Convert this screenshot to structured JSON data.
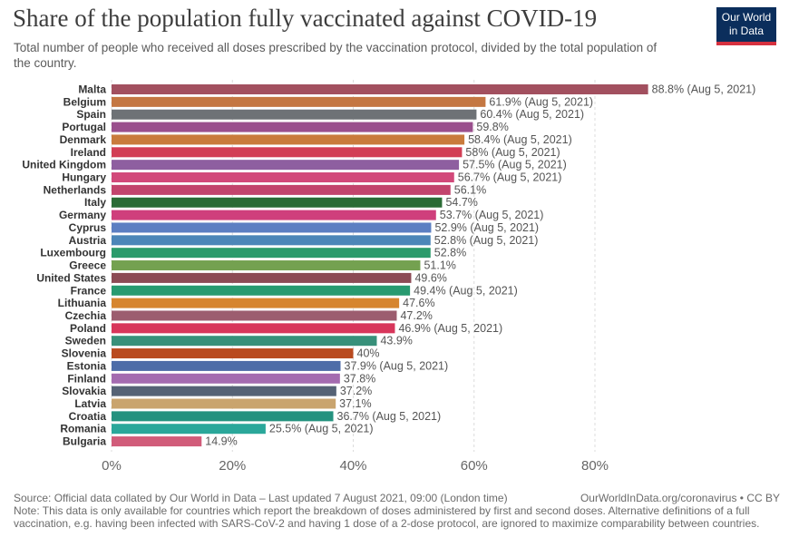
{
  "header": {
    "title": "Share of the population fully vaccinated against COVID-19",
    "subtitle": "Total number of people who received all doses prescribed by the vaccination protocol, divided by the total population of the country."
  },
  "logo": {
    "line1": "Our World",
    "line2": "in Data"
  },
  "footer": {
    "source": "Source: Official data collated by Our World in Data – Last updated 7 August 2021, 09:00 (London time)",
    "link": "OurWorldInData.org/coronavirus • CC BY",
    "note": "Note: This data is only available for countries which report the breakdown of doses administered by first and second doses. Alternative definitions of a full vaccination, e.g. having been infected with SARS-CoV-2 and having 1 dose of a 2-dose protocol, are ignored to maximize comparability between countries."
  },
  "chart_data": {
    "type": "bar",
    "orientation": "horizontal",
    "title": "Share of the population fully vaccinated against COVID-19",
    "xlim": [
      0,
      90
    ],
    "xticks": [
      0,
      20,
      40,
      60,
      80
    ],
    "xtick_labels": [
      "0%",
      "20%",
      "40%",
      "60%",
      "80%"
    ],
    "grid": true,
    "categories": [
      "Malta",
      "Belgium",
      "Spain",
      "Portugal",
      "Denmark",
      "Ireland",
      "United Kingdom",
      "Hungary",
      "Netherlands",
      "Italy",
      "Germany",
      "Cyprus",
      "Austria",
      "Luxembourg",
      "Greece",
      "United States",
      "France",
      "Lithuania",
      "Czechia",
      "Poland",
      "Sweden",
      "Slovenia",
      "Estonia",
      "Finland",
      "Slovakia",
      "Latvia",
      "Croatia",
      "Romania",
      "Bulgaria"
    ],
    "values": [
      88.8,
      61.9,
      60.4,
      59.8,
      58.4,
      58,
      57.5,
      56.7,
      56.1,
      54.7,
      53.7,
      52.9,
      52.8,
      52.8,
      51.1,
      49.6,
      49.4,
      47.6,
      47.2,
      46.9,
      43.9,
      40,
      37.9,
      37.8,
      37.2,
      37.1,
      36.7,
      25.5,
      14.9
    ],
    "labels": [
      "88.8% (Aug 5, 2021)",
      "61.9% (Aug 5, 2021)",
      "60.4% (Aug 5, 2021)",
      "59.8%",
      "58.4% (Aug 5, 2021)",
      "58% (Aug 5, 2021)",
      "57.5% (Aug 5, 2021)",
      "56.7% (Aug 5, 2021)",
      "56.1%",
      "54.7%",
      "53.7% (Aug 5, 2021)",
      "52.9% (Aug 5, 2021)",
      "52.8% (Aug 5, 2021)",
      "52.8%",
      "51.1%",
      "49.6%",
      "49.4% (Aug 5, 2021)",
      "47.6%",
      "47.2%",
      "46.9% (Aug 5, 2021)",
      "43.9%",
      "40%",
      "37.9% (Aug 5, 2021)",
      "37.8%",
      "37.2%",
      "37.1%",
      "36.7% (Aug 5, 2021)",
      "25.5% (Aug 5, 2021)",
      "14.9%"
    ],
    "colors": [
      "#a2505f",
      "#c47742",
      "#6e7276",
      "#9a4f8d",
      "#c97b3c",
      "#d23e55",
      "#8e5fa0",
      "#d2497a",
      "#c2446d",
      "#2a6b35",
      "#cf3f7c",
      "#5c7fc2",
      "#4c86b8",
      "#2b9b6b",
      "#74a150",
      "#8c4b55",
      "#289a70",
      "#d6852f",
      "#9c5d6f",
      "#d8365b",
      "#38907a",
      "#b94a1f",
      "#4e6da8",
      "#a46bb0",
      "#556275",
      "#c9a46e",
      "#24927f",
      "#2aa79a",
      "#d15c7a"
    ]
  }
}
